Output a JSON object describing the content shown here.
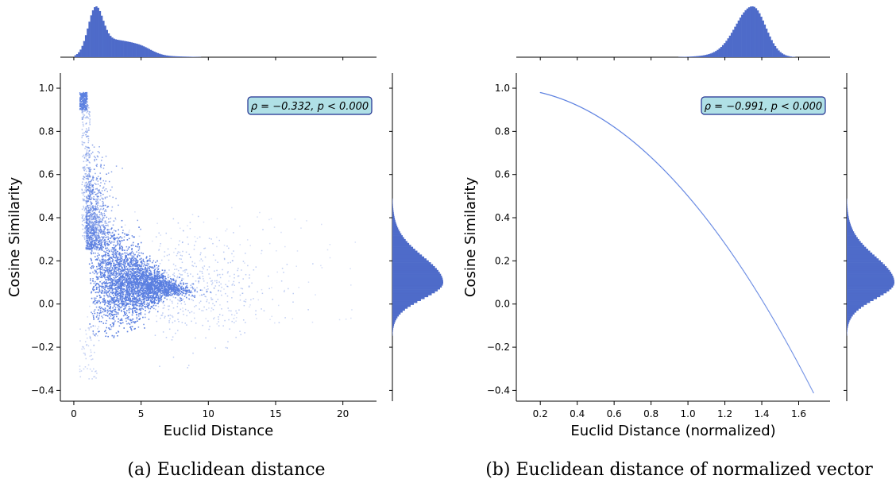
{
  "colors": {
    "points": "#5b7fe0",
    "hist_fill": "#4e6bc9",
    "hist_edge": "#3d57b0",
    "annot_fill": "#b0e0e6",
    "annot_edge": "#1f2f8f",
    "axis": "#000000"
  },
  "chart_data": [
    {
      "type": "scatter",
      "caption": "(a) Euclidean distance",
      "xlabel": "Euclid Distance",
      "ylabel": "Cosine Similarity",
      "xlim": [
        -1,
        22.5
      ],
      "ylim": [
        -0.45,
        1.07
      ],
      "xticks": [
        0,
        5,
        10,
        15,
        20
      ],
      "xtick_labels": [
        "0",
        "5",
        "10",
        "15",
        "20"
      ],
      "yticks": [
        -0.4,
        -0.2,
        0.0,
        0.2,
        0.4,
        0.6,
        0.8,
        1.0
      ],
      "ytick_labels": [
        "−0.4",
        "−0.2",
        "0.0",
        "0.2",
        "0.4",
        "0.6",
        "0.8",
        "1.0"
      ],
      "annotation": "ρ = −0.332, p < 0.000",
      "annotation_position": "top-right",
      "marginal_top": "histogram of Euclid Distance",
      "marginal_right": "histogram of Cosine Similarity",
      "series": [
        {
          "description_points": [
            [
              0.5,
              0.96
            ],
            [
              0.6,
              0.93
            ],
            [
              0.8,
              0.95
            ],
            [
              0.9,
              0.9
            ],
            [
              1.0,
              0.7
            ],
            [
              1.2,
              0.55
            ],
            [
              1.5,
              0.45
            ],
            [
              1.8,
              0.4
            ],
            [
              1.0,
              0.3
            ],
            [
              1.5,
              0.2
            ],
            [
              2.0,
              0.15
            ],
            [
              2.5,
              0.1
            ],
            [
              3.0,
              0.05
            ],
            [
              3.5,
              0.1
            ],
            [
              4.0,
              0.12
            ],
            [
              4.5,
              0.08
            ],
            [
              5.0,
              0.05
            ],
            [
              5.5,
              0.1
            ],
            [
              6.0,
              0.06
            ],
            [
              6.5,
              0.04
            ],
            [
              1.2,
              -0.05
            ],
            [
              1.5,
              -0.1
            ],
            [
              2.0,
              -0.08
            ],
            [
              3.0,
              -0.05
            ],
            [
              1.3,
              0.0
            ],
            [
              2.0,
              0.25
            ],
            [
              2.5,
              0.3
            ],
            [
              3.0,
              0.2
            ],
            [
              4.0,
              0.2
            ],
            [
              5.0,
              0.15
            ],
            [
              7.0,
              0.05
            ],
            [
              8.0,
              0.1
            ],
            [
              10.0,
              0.05
            ],
            [
              12.0,
              0.2
            ],
            [
              15.0,
              0.1
            ],
            [
              18.0,
              0.12
            ],
            [
              21.0,
              0.0
            ],
            [
              0.7,
              -0.2
            ],
            [
              1.0,
              -0.3
            ],
            [
              1.5,
              -0.15
            ]
          ]
        }
      ]
    },
    {
      "type": "scatter",
      "caption": "(b) Euclidean distance of normalized vector",
      "xlabel": "Euclid Distance (normalized)",
      "ylabel": "Cosine Similarity",
      "xlim": [
        0.07,
        1.77
      ],
      "ylim": [
        -0.45,
        1.07
      ],
      "xticks": [
        0.2,
        0.4,
        0.6,
        0.8,
        1.0,
        1.2,
        1.4,
        1.6
      ],
      "xtick_labels": [
        "0.2",
        "0.4",
        "0.6",
        "0.8",
        "1.0",
        "1.2",
        "1.4",
        "1.6"
      ],
      "yticks": [
        -0.4,
        -0.2,
        0.0,
        0.2,
        0.4,
        0.6,
        0.8,
        1.0
      ],
      "ytick_labels": [
        "−0.4",
        "−0.2",
        "0.0",
        "0.2",
        "0.4",
        "0.6",
        "0.8",
        "1.0"
      ],
      "annotation": "ρ = −0.991, p < 0.000",
      "annotation_position": "top-right",
      "marginal_top": "histogram of Euclid Distance (normalized)",
      "marginal_right": "histogram of Cosine Similarity",
      "curve": "cosine = 1 - d^2 / 2",
      "curve_x_range": [
        0.2,
        1.68
      ]
    }
  ]
}
